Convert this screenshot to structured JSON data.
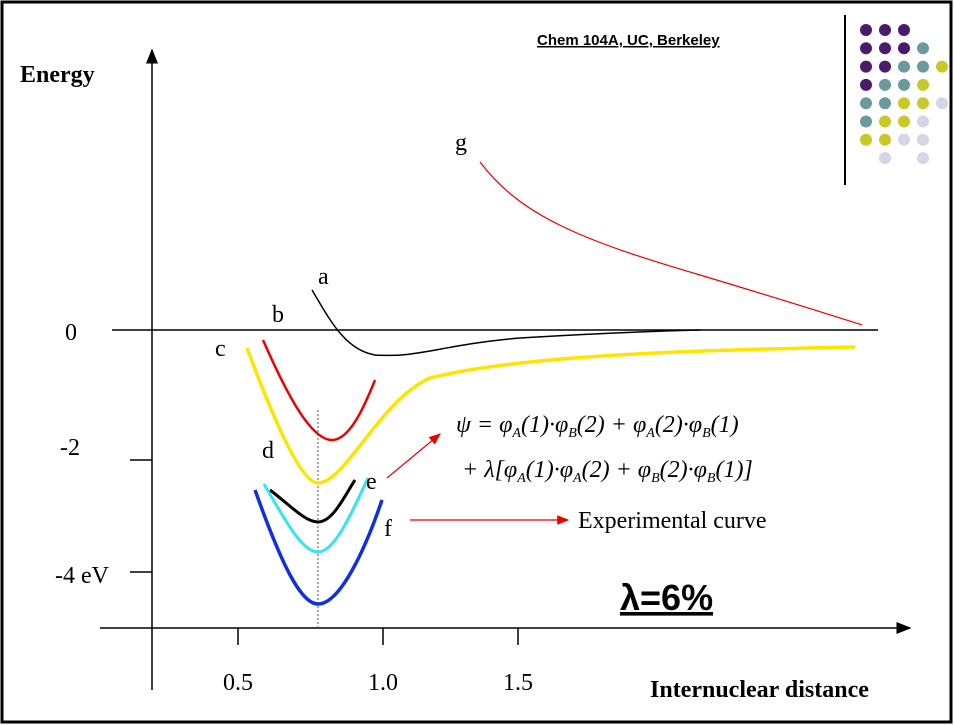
{
  "header": {
    "course": "Chem 104A, UC, Berkeley"
  },
  "axes": {
    "y_title": "Energy",
    "x_title": "Internuclear distance",
    "y_labels": [
      "0",
      "-2",
      "-4 eV"
    ],
    "x_labels": [
      "0.5",
      "1.0",
      "1.5"
    ]
  },
  "curve_labels": [
    "a",
    "b",
    "c",
    "d",
    "e",
    "f",
    "g"
  ],
  "equation": {
    "lines": [
      [
        {
          "text": "ψ  = φ"
        },
        {
          "text": "A",
          "subscript": true
        },
        {
          "text": "(1)·φ"
        },
        {
          "text": "B",
          "subscript": true
        },
        {
          "text": "(2) + φ"
        },
        {
          "text": "A",
          "subscript": true
        },
        {
          "text": "(2)·φ"
        },
        {
          "text": "B",
          "subscript": true
        },
        {
          "text": "(1)"
        }
      ],
      [
        {
          "text": "+ λ[φ"
        },
        {
          "text": "A",
          "subscript": true
        },
        {
          "text": "(1)·φ"
        },
        {
          "text": "A",
          "subscript": true
        },
        {
          "text": "(2) + φ"
        },
        {
          "text": "B",
          "subscript": true
        },
        {
          "text": "(2)·φ"
        },
        {
          "text": "B",
          "subscript": true
        },
        {
          "text": "(1)]"
        }
      ]
    ]
  },
  "experimental_label": "Experimental curve",
  "lambda_label": "λ=6%"
}
